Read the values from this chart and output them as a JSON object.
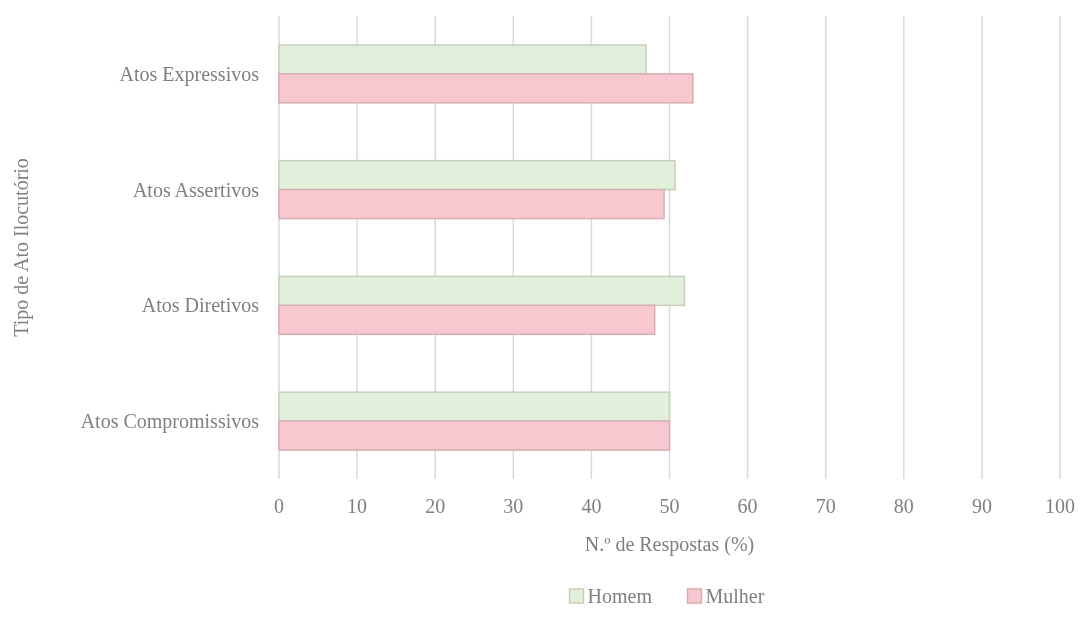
{
  "chart_data": {
    "type": "bar",
    "orientation": "horizontal",
    "xlabel": "N.º de Respostas (%)",
    "ylabel": "Tipo de Ato Ilocutório",
    "categories": [
      "Atos Expressivos",
      "Atos Assertivos",
      "Atos Diretivos",
      "Atos Compromissivos"
    ],
    "series": [
      {
        "name": "Homem",
        "color": "#e2efda",
        "values": [
          47,
          50.7,
          51.9,
          50
        ]
      },
      {
        "name": "Mulher",
        "color": "#f8c8d0",
        "values": [
          53,
          49.3,
          48.1,
          50
        ]
      }
    ],
    "xlim": [
      0,
      100
    ],
    "xticks": [
      0,
      10,
      20,
      30,
      40,
      50,
      60,
      70,
      80,
      90,
      100
    ],
    "grid": "x",
    "legend": "bottom"
  }
}
